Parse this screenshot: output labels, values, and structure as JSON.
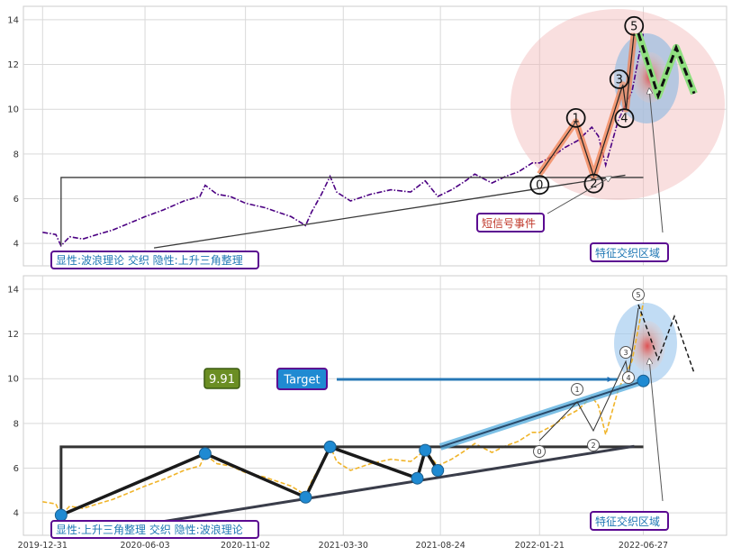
{
  "chart_data": [
    {
      "type": "line",
      "panel": "top",
      "grid": true,
      "ylim": [
        3,
        14.6
      ],
      "yticks": [
        4,
        6,
        8,
        10,
        12,
        14
      ],
      "series": [
        {
          "role": "price",
          "style": "dash-dot",
          "color": "#4b0082",
          "x": [
            "2019-12-31",
            "2020-01-10",
            "2020-01-20",
            "2020-01-28",
            "2020-02-10",
            "2020-03-01",
            "2020-03-23",
            "2020-04-15",
            "2020-05-10",
            "2020-06-03",
            "2020-07-01",
            "2020-08-01",
            "2020-08-25",
            "2020-09-02",
            "2020-09-20",
            "2020-10-10",
            "2020-11-02",
            "2020-12-01",
            "2021-01-10",
            "2021-02-01",
            "2021-02-10",
            "2021-02-25",
            "2021-03-10",
            "2021-03-20",
            "2021-04-10",
            "2021-05-10",
            "2021-06-10",
            "2021-07-10",
            "2021-08-01",
            "2021-08-20",
            "2021-09-10",
            "2021-10-01",
            "2021-10-15",
            "2021-11-10",
            "2021-12-01",
            "2021-12-20",
            "2022-01-10",
            "2022-01-21",
            "2022-02-10",
            "2022-03-01",
            "2022-03-20",
            "2022-04-10",
            "2022-04-20",
            "2022-05-01",
            "2022-05-20",
            "2022-06-10",
            "2022-06-27"
          ],
          "y": [
            4.5,
            4.45,
            4.4,
            3.9,
            4.3,
            4.2,
            4.4,
            4.6,
            4.9,
            5.2,
            5.5,
            5.9,
            6.1,
            6.6,
            6.2,
            6.1,
            5.8,
            5.6,
            5.2,
            4.8,
            5.4,
            6.2,
            7.0,
            6.3,
            5.9,
            6.2,
            6.4,
            6.3,
            6.8,
            6.1,
            6.4,
            6.8,
            7.1,
            6.7,
            7.0,
            7.2,
            7.6,
            7.6,
            7.9,
            8.3,
            8.6,
            9.2,
            8.8,
            7.5,
            9.5,
            10.8,
            13.4
          ]
        }
      ],
      "annotations": [
        {
          "kind": "triangle-pattern",
          "points": [
            [
              "2020-01-28",
              3.9
            ],
            [
              "2020-01-28",
              6.95
            ],
            [
              "2022-06-27",
              6.95
            ],
            [
              "2022-06-27",
              7.15
            ]
          ]
        },
        {
          "kind": "wave-labels",
          "labels": [
            "0",
            "1",
            "2",
            "3",
            "4",
            "5"
          ],
          "points": [
            [
              "2022-01-21",
              7.1
            ],
            [
              "2022-03-17",
              9.45
            ],
            [
              "2022-04-13",
              7.0
            ],
            [
              "2022-05-27",
              11.1
            ],
            [
              "2022-06-01",
              10.0
            ],
            [
              "2022-06-13",
              13.4
            ]
          ]
        },
        {
          "kind": "projection",
          "y": [
            13.4,
            10.6,
            12.75,
            10.7
          ]
        }
      ],
      "text_boxes": [
        {
          "text": "显性:波浪理论 交织 隐性:上升三角整理",
          "color": "#1f77b4"
        },
        {
          "text": "短信号事件",
          "color": "#c0392b"
        },
        {
          "text": "特征交织区域",
          "color": "#1f77b4"
        }
      ]
    },
    {
      "type": "line",
      "panel": "bottom",
      "grid": true,
      "ylim": [
        3,
        14.6
      ],
      "yticks": [
        4,
        6,
        8,
        10,
        12,
        14
      ],
      "xticks": [
        "2019-12-31",
        "2020-06-03",
        "2020-11-02",
        "2021-03-30",
        "2021-08-24",
        "2022-01-21",
        "2022-06-27"
      ],
      "series": [
        {
          "role": "price",
          "style": "dashed",
          "color": "#f0b429",
          "x": [
            "2019-12-31",
            "2020-01-10",
            "2020-01-20",
            "2020-01-28",
            "2020-02-10",
            "2020-03-01",
            "2020-03-23",
            "2020-04-15",
            "2020-05-10",
            "2020-06-03",
            "2020-07-01",
            "2020-08-01",
            "2020-08-25",
            "2020-09-02",
            "2020-09-20",
            "2020-10-10",
            "2020-11-02",
            "2020-12-01",
            "2021-01-10",
            "2021-02-01",
            "2021-02-10",
            "2021-02-25",
            "2021-03-10",
            "2021-03-20",
            "2021-04-10",
            "2021-05-10",
            "2021-06-10",
            "2021-07-10",
            "2021-08-01",
            "2021-08-20",
            "2021-09-10",
            "2021-10-01",
            "2021-10-15",
            "2021-11-10",
            "2021-12-01",
            "2021-12-20",
            "2022-01-10",
            "2022-01-21",
            "2022-02-10",
            "2022-03-01",
            "2022-03-20",
            "2022-04-10",
            "2022-04-20",
            "2022-05-01",
            "2022-05-20",
            "2022-06-10",
            "2022-06-27"
          ],
          "y": [
            4.5,
            4.45,
            4.4,
            3.9,
            4.3,
            4.2,
            4.4,
            4.6,
            4.9,
            5.2,
            5.5,
            5.9,
            6.1,
            6.6,
            6.2,
            6.1,
            5.8,
            5.6,
            5.2,
            4.8,
            5.4,
            6.2,
            7.0,
            6.3,
            5.9,
            6.2,
            6.4,
            6.3,
            6.8,
            6.1,
            6.4,
            6.8,
            7.1,
            6.7,
            7.0,
            7.2,
            7.6,
            7.6,
            7.9,
            8.3,
            8.6,
            9.2,
            8.8,
            7.5,
            9.5,
            10.8,
            13.4
          ]
        }
      ],
      "pivots": [
        [
          "2020-01-28",
          3.9
        ],
        [
          "2020-09-02",
          6.65
        ],
        [
          "2021-02-01",
          4.7
        ],
        [
          "2021-03-10",
          6.95
        ],
        [
          "2021-07-20",
          5.55
        ],
        [
          "2021-08-01",
          6.8
        ],
        [
          "2021-08-20",
          5.9
        ],
        [
          "2022-06-27",
          9.9
        ]
      ],
      "target_value": "9.91",
      "target_label": "Target",
      "text_boxes": [
        {
          "text": "显性:上升三角整理 交织 隐性:波浪理论",
          "color": "#1f77b4"
        },
        {
          "text": "特征交织区域",
          "color": "#1f77b4"
        }
      ]
    }
  ]
}
